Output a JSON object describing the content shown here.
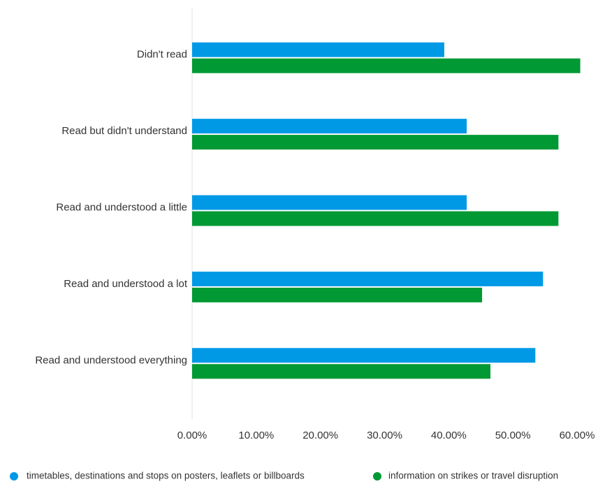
{
  "chart_data": {
    "type": "bar",
    "orientation": "horizontal",
    "categories": [
      "Didn't read",
      "Read but didn't understand",
      "Read and understood a little",
      "Read and understood a lot",
      "Read and understood everything"
    ],
    "series": [
      {
        "name": "timetables, destinations and stops on posters, leaflets or billboards",
        "color": "#0099e6",
        "values": [
          39.3,
          42.8,
          42.8,
          54.7,
          53.5
        ]
      },
      {
        "name": "information on strikes or travel disruption",
        "color": "#009933",
        "values": [
          60.5,
          57.1,
          57.1,
          45.2,
          46.5
        ]
      }
    ],
    "xlim": [
      0,
      60
    ],
    "xticks": [
      "0.00%",
      "10.00%",
      "20.00%",
      "30.00%",
      "40.00%",
      "50.00%",
      "60.00%"
    ],
    "title": "",
    "xlabel": "",
    "ylabel": "",
    "legend_position": "bottom",
    "grid": false
  }
}
